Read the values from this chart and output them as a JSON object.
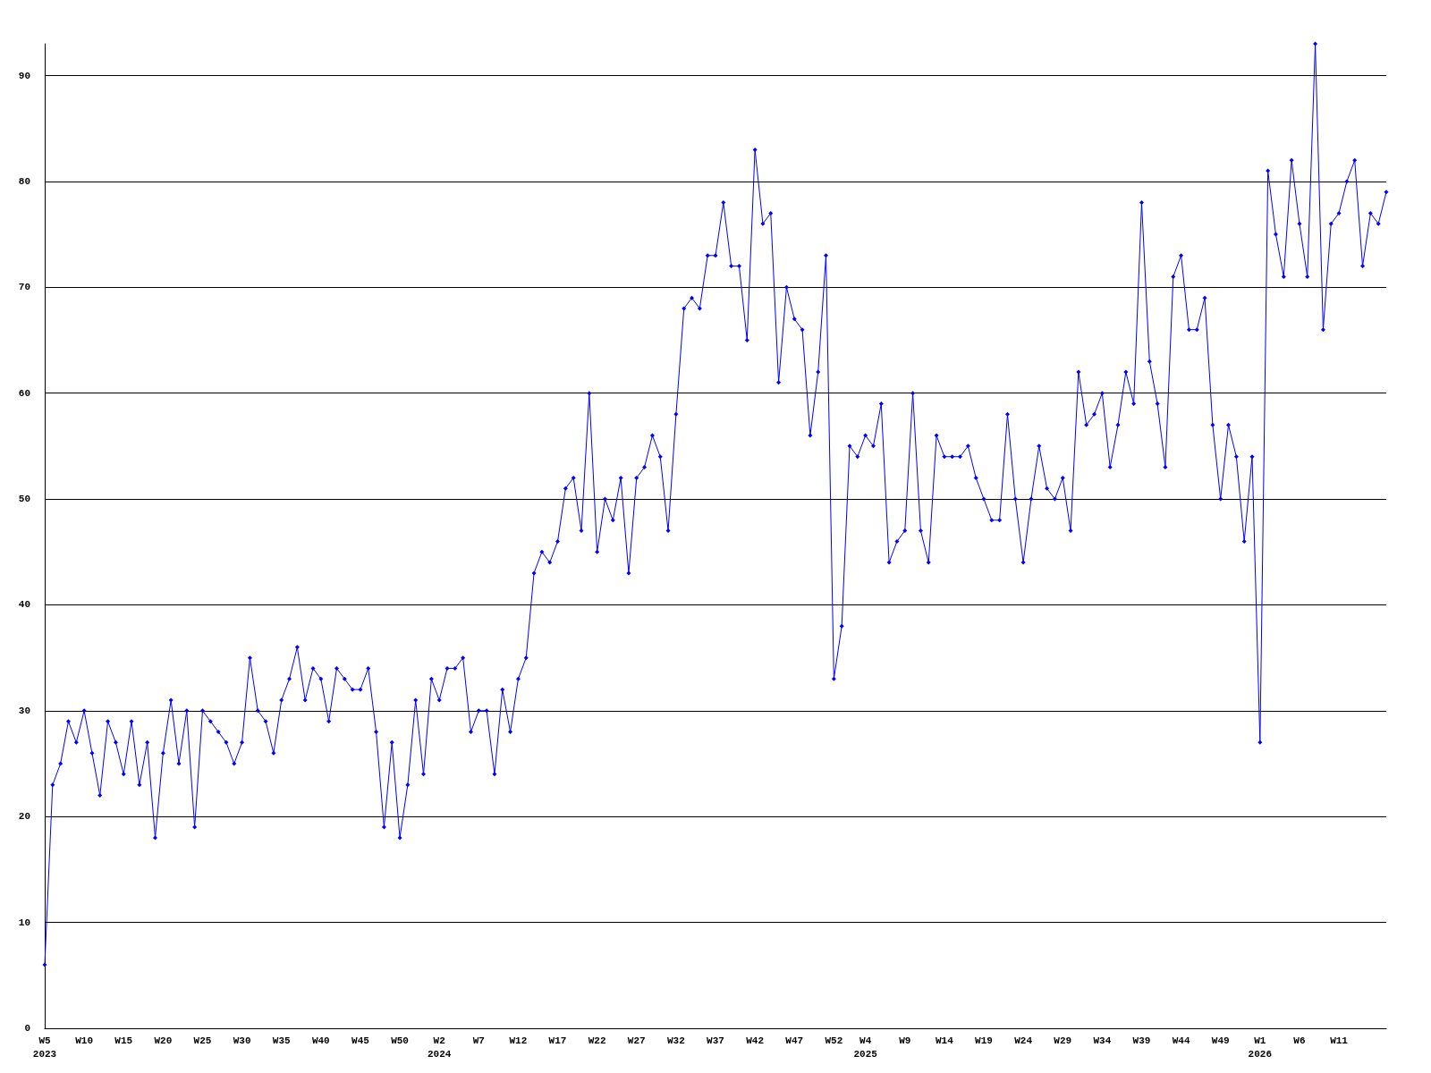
{
  "chart_data": {
    "type": "line",
    "categories": [
      "W5\n2023",
      null,
      null,
      null,
      null,
      "W10",
      null,
      null,
      null,
      null,
      "W15",
      null,
      null,
      null,
      null,
      "W20",
      null,
      null,
      null,
      null,
      "W25",
      null,
      null,
      null,
      null,
      "W30",
      null,
      null,
      null,
      null,
      "W35",
      null,
      null,
      null,
      null,
      "W40",
      null,
      null,
      null,
      null,
      "W45",
      null,
      null,
      null,
      null,
      "W50",
      null,
      null,
      null,
      null,
      "W2\n2024",
      null,
      null,
      null,
      null,
      "W7",
      null,
      null,
      null,
      null,
      "W12",
      null,
      null,
      null,
      null,
      "W17",
      null,
      null,
      null,
      null,
      "W22",
      null,
      null,
      null,
      null,
      "W27",
      null,
      null,
      null,
      null,
      "W32",
      null,
      null,
      null,
      null,
      "W37",
      null,
      null,
      null,
      null,
      "W42",
      null,
      null,
      null,
      null,
      "W47",
      null,
      null,
      null,
      null,
      "W52",
      null,
      null,
      null,
      "W4\n2025",
      null,
      null,
      null,
      null,
      "W9",
      null,
      null,
      null,
      null,
      "W14",
      null,
      null,
      null,
      null,
      "W19",
      null,
      null,
      null,
      null,
      "W24",
      null,
      null,
      null,
      null,
      "W29",
      null,
      null,
      null,
      null,
      "W34",
      null,
      null,
      null,
      null,
      "W39",
      null,
      null,
      null,
      null,
      "W44",
      null,
      null,
      null,
      null,
      "W49",
      null,
      null,
      null,
      null,
      "W1\n2026",
      null,
      null,
      null,
      null,
      "W6",
      null,
      null,
      null,
      null,
      "W11",
      null,
      null,
      null,
      null,
      null,
      null
    ],
    "series": [
      {
        "color": "#0000ff",
        "values": [
          6,
          23,
          25,
          29,
          27,
          30,
          26,
          22,
          29,
          27,
          24,
          29,
          23,
          27,
          18,
          26,
          31,
          25,
          30,
          19,
          30,
          29,
          28,
          27,
          25,
          27,
          35,
          30,
          29,
          26,
          31,
          33,
          36,
          31,
          34,
          33,
          29,
          34,
          33,
          32,
          32,
          34,
          28,
          19,
          27,
          18,
          23,
          31,
          24,
          33,
          31,
          34,
          34,
          35,
          28,
          30,
          30,
          24,
          32,
          28,
          33,
          35,
          43,
          45,
          44,
          46,
          51,
          52,
          47,
          60,
          45,
          50,
          48,
          52,
          43,
          52,
          53,
          56,
          54,
          47,
          58,
          68,
          69,
          68,
          73,
          73,
          78,
          72,
          72,
          65,
          83,
          76,
          77,
          61,
          70,
          67,
          66,
          56,
          62,
          73,
          33,
          38,
          55,
          54,
          56,
          55,
          59,
          44,
          46,
          47,
          60,
          47,
          44,
          56,
          54,
          54,
          54,
          55,
          52,
          50,
          48,
          48,
          58,
          50,
          44,
          50,
          55,
          51,
          50,
          52,
          47,
          62,
          57,
          58,
          60,
          53,
          57,
          62,
          59,
          78,
          63,
          59,
          53,
          71,
          73,
          66,
          66,
          69,
          57,
          50,
          57,
          54,
          46,
          54,
          27,
          81,
          75,
          71,
          82,
          76,
          71,
          93,
          66,
          76,
          77,
          80,
          82,
          72,
          77,
          76,
          79
        ]
      }
    ],
    "ylim": [
      0,
      93
    ],
    "yticks": [
      0,
      10,
      20,
      30,
      40,
      50,
      60,
      70,
      80,
      90
    ],
    "grid": "y",
    "marker": "diamond"
  }
}
